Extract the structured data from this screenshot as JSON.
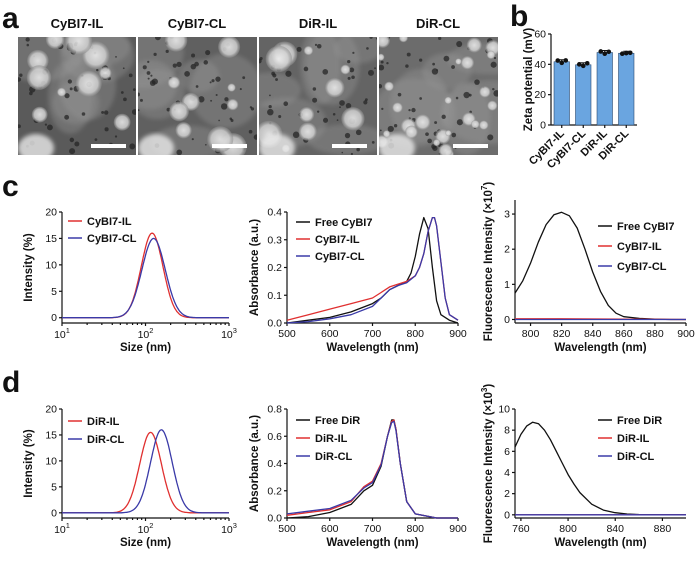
{
  "panels": {
    "a": "a",
    "b": "b",
    "c": "c",
    "d": "d"
  },
  "tem_images": [
    {
      "label": "CyBI7-IL"
    },
    {
      "label": "CyBI7-CL"
    },
    {
      "label": "DiR-IL"
    },
    {
      "label": "DiR-CL"
    }
  ],
  "chart_data": [
    {
      "id": "b-zeta",
      "type": "bar",
      "title": "",
      "xlabel": "",
      "ylabel": "Zeta potential (mV)",
      "ylim": [
        0,
        60
      ],
      "yticks": [
        "0",
        "20",
        "40",
        "60"
      ],
      "categories": [
        "CyBI7-IL",
        "CyBI7-CL",
        "DiR-IL",
        "DiR-CL"
      ],
      "values": [
        41.7,
        39.7,
        47.8,
        47.3
      ],
      "points": [
        [
          42.5,
          41.0,
          42.6
        ],
        [
          40.0,
          39.0,
          40.7
        ],
        [
          48.5,
          47.0,
          48.3
        ],
        [
          47.0,
          47.4,
          47.6
        ]
      ],
      "bar_color": "#6aa5e0"
    },
    {
      "id": "c-size",
      "type": "line",
      "xscale": "log",
      "xlabel": "Size (nm)",
      "ylabel": "Intensity (%)",
      "xlim": [
        10,
        1000
      ],
      "ylim": [
        -1,
        20
      ],
      "xticks": [
        10,
        100,
        1000
      ],
      "yticks": [
        0,
        5,
        10,
        15,
        20
      ],
      "series": [
        {
          "name": "CyBI7-IL",
          "color": "#e03030",
          "center": 120,
          "peak": 16,
          "sigma": 0.13
        },
        {
          "name": "CyBI7-CL",
          "color": "#3a3aa8",
          "center": 125,
          "peak": 15,
          "sigma": 0.14
        }
      ]
    },
    {
      "id": "c-abs",
      "type": "line",
      "xlabel": "Wavelength (nm)",
      "ylabel": "Absorbance (a.u.)",
      "xlim": [
        500,
        900
      ],
      "ylim": [
        0,
        0.4
      ],
      "xticks": [
        500,
        600,
        700,
        800,
        900
      ],
      "yticks": [
        0.0,
        0.1,
        0.2,
        0.3,
        0.4
      ],
      "series": [
        {
          "name": "Free CyBI7",
          "color": "#111111",
          "x": [
            500,
            550,
            600,
            650,
            700,
            720,
            740,
            760,
            780,
            790,
            800,
            810,
            820,
            830,
            840,
            850,
            860,
            880,
            900
          ],
          "y": [
            0.0,
            0.01,
            0.02,
            0.04,
            0.07,
            0.09,
            0.12,
            0.135,
            0.15,
            0.18,
            0.24,
            0.32,
            0.38,
            0.34,
            0.2,
            0.08,
            0.03,
            0.01,
            0.0
          ]
        },
        {
          "name": "CyBI7-IL",
          "color": "#e03030",
          "x": [
            500,
            550,
            600,
            650,
            700,
            720,
            740,
            760,
            780,
            800,
            810,
            820,
            830,
            840,
            845,
            850,
            860,
            870,
            880,
            900
          ],
          "y": [
            0.01,
            0.03,
            0.05,
            0.07,
            0.09,
            0.11,
            0.13,
            0.14,
            0.15,
            0.17,
            0.2,
            0.25,
            0.33,
            0.38,
            0.38,
            0.35,
            0.22,
            0.09,
            0.03,
            0.01
          ]
        },
        {
          "name": "CyBI7-CL",
          "color": "#3a3aa8",
          "x": [
            500,
            550,
            600,
            650,
            700,
            720,
            740,
            760,
            780,
            800,
            810,
            820,
            830,
            840,
            845,
            850,
            860,
            870,
            880,
            900
          ],
          "y": [
            0.0,
            0.005,
            0.015,
            0.03,
            0.06,
            0.09,
            0.12,
            0.135,
            0.145,
            0.17,
            0.2,
            0.25,
            0.33,
            0.38,
            0.38,
            0.35,
            0.22,
            0.09,
            0.03,
            0.01
          ]
        }
      ]
    },
    {
      "id": "c-fl",
      "type": "line",
      "xlabel": "Wavelength (nm)",
      "ylabel": "Fluorescence Intensity (×10",
      "ylabel_sup": "7",
      "xlim": [
        790,
        900
      ],
      "ylim": [
        -0.1,
        3.4
      ],
      "xticks": [
        800,
        820,
        840,
        860,
        880,
        900
      ],
      "yticks": [
        0,
        1,
        2,
        3
      ],
      "series": [
        {
          "name": "Free CyBI7",
          "color": "#111111",
          "x": [
            790,
            795,
            800,
            805,
            810,
            815,
            820,
            825,
            830,
            835,
            840,
            845,
            850,
            855,
            860,
            870,
            880,
            890,
            900
          ],
          "y": [
            0.75,
            1.1,
            1.6,
            2.2,
            2.7,
            2.98,
            3.05,
            2.95,
            2.6,
            2.0,
            1.35,
            0.8,
            0.4,
            0.18,
            0.08,
            0.03,
            0.01,
            0.0,
            0.0
          ]
        },
        {
          "name": "CyBI7-IL",
          "color": "#e03030",
          "x": [
            790,
            820,
            860,
            900
          ],
          "y": [
            0.02,
            0.02,
            0.01,
            0.0
          ]
        },
        {
          "name": "CyBI7-CL",
          "color": "#3a3aa8",
          "x": [
            790,
            820,
            860,
            900
          ],
          "y": [
            0.0,
            0.0,
            0.0,
            0.0
          ]
        }
      ]
    },
    {
      "id": "d-size",
      "type": "line",
      "xscale": "log",
      "xlabel": "Size (nm)",
      "ylabel": "Intensity (%)",
      "xlim": [
        10,
        1000
      ],
      "ylim": [
        -1,
        20
      ],
      "xticks": [
        10,
        100,
        1000
      ],
      "yticks": [
        0,
        5,
        10,
        15,
        20
      ],
      "series": [
        {
          "name": "DiR-IL",
          "color": "#e03030",
          "center": 115,
          "peak": 15.5,
          "sigma": 0.13
        },
        {
          "name": "DiR-CL",
          "color": "#3a3aa8",
          "center": 155,
          "peak": 16,
          "sigma": 0.13
        }
      ]
    },
    {
      "id": "d-abs",
      "type": "line",
      "xlabel": "Wavelength (nm)",
      "ylabel": "Absorbance (a.u.)",
      "xlim": [
        500,
        900
      ],
      "ylim": [
        0,
        0.8
      ],
      "xticks": [
        500,
        600,
        700,
        800,
        900
      ],
      "yticks": [
        0.0,
        0.2,
        0.4,
        0.6,
        0.8
      ],
      "series": [
        {
          "name": "Free DiR",
          "color": "#111111",
          "x": [
            500,
            550,
            600,
            650,
            680,
            700,
            720,
            735,
            745,
            750,
            755,
            765,
            780,
            800,
            850,
            900
          ],
          "y": [
            0.0,
            0.01,
            0.04,
            0.1,
            0.2,
            0.24,
            0.38,
            0.6,
            0.72,
            0.72,
            0.65,
            0.4,
            0.12,
            0.03,
            0.0,
            0.0
          ]
        },
        {
          "name": "DiR-IL",
          "color": "#e03030",
          "x": [
            500,
            550,
            600,
            650,
            680,
            700,
            720,
            735,
            745,
            750,
            755,
            765,
            780,
            800,
            850,
            900
          ],
          "y": [
            0.02,
            0.04,
            0.06,
            0.12,
            0.23,
            0.27,
            0.4,
            0.6,
            0.71,
            0.72,
            0.65,
            0.4,
            0.12,
            0.03,
            0.0,
            0.0
          ]
        },
        {
          "name": "DiR-CL",
          "color": "#3a3aa8",
          "x": [
            500,
            550,
            600,
            650,
            680,
            700,
            720,
            735,
            745,
            750,
            755,
            765,
            780,
            800,
            850,
            900
          ],
          "y": [
            0.03,
            0.05,
            0.07,
            0.13,
            0.22,
            0.26,
            0.39,
            0.6,
            0.7,
            0.71,
            0.64,
            0.4,
            0.12,
            0.03,
            0.0,
            0.0
          ]
        }
      ]
    },
    {
      "id": "d-fl",
      "type": "line",
      "xlabel": "Wavelength (nm)",
      "ylabel": "Fluorescence Intensity (×10",
      "ylabel_sup": "3",
      "xlim": [
        755,
        900
      ],
      "ylim": [
        -0.3,
        10
      ],
      "xticks": [
        760,
        800,
        840,
        880
      ],
      "yticks": [
        0,
        2,
        4,
        6,
        8,
        10
      ],
      "series": [
        {
          "name": "Free DiR",
          "color": "#111111",
          "x": [
            755,
            760,
            765,
            770,
            775,
            780,
            785,
            790,
            795,
            800,
            805,
            810,
            820,
            830,
            840,
            850,
            860,
            880,
            900
          ],
          "y": [
            6.4,
            7.6,
            8.4,
            8.75,
            8.6,
            8.0,
            7.1,
            6.0,
            4.9,
            3.8,
            2.9,
            2.1,
            1.0,
            0.45,
            0.2,
            0.08,
            0.03,
            0.0,
            0.0
          ]
        },
        {
          "name": "DiR-IL",
          "color": "#e03030",
          "x": [
            755,
            800,
            850,
            900
          ],
          "y": [
            0.0,
            0.0,
            0.0,
            0.0
          ]
        },
        {
          "name": "DiR-CL",
          "color": "#3a3aa8",
          "x": [
            755,
            800,
            850,
            900
          ],
          "y": [
            0.0,
            0.0,
            0.0,
            0.0
          ]
        }
      ]
    }
  ]
}
